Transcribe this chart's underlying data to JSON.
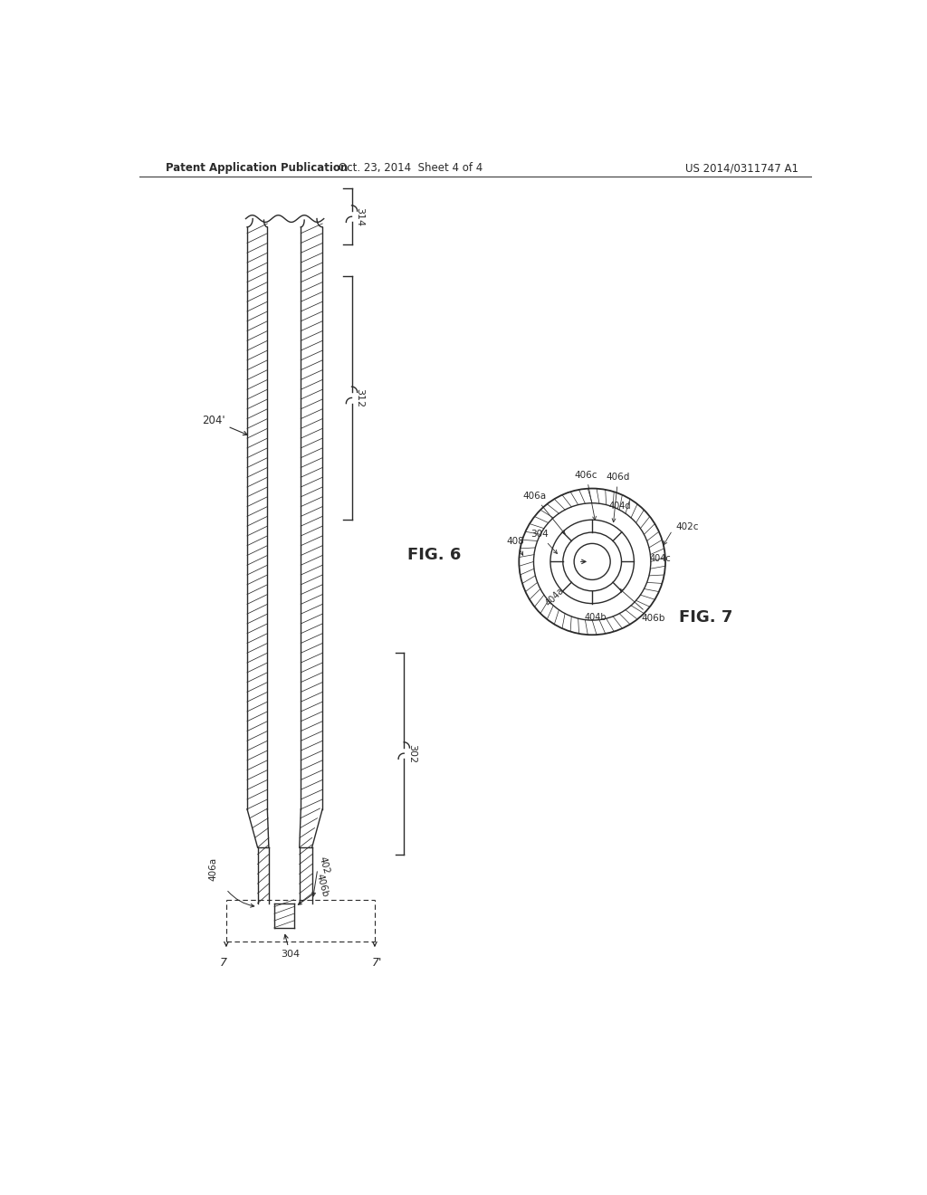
{
  "bg_color": "#ffffff",
  "line_color": "#2a2a2a",
  "header_left": "Patent Application Publication",
  "header_mid": "Oct. 23, 2014  Sheet 4 of 4",
  "header_right": "US 2014/0311747 A1",
  "fig6_label": "FIG. 6",
  "fig7_label": "FIG. 7",
  "label_204": "204'",
  "label_314": "314",
  "label_312": "312",
  "label_302": "302",
  "label_304": "304",
  "label_402": "402",
  "label_406a": "406a",
  "label_406b": "406b",
  "label_7left": "7",
  "label_7right": "7'",
  "fig7_304": "304",
  "fig7_408": "408",
  "fig7_406a": "406a",
  "fig7_406b": "406b",
  "fig7_406c": "406c",
  "fig7_406d": "406d",
  "fig7_404a": "404a",
  "fig7_404b": "404b",
  "fig7_404c": "404c",
  "fig7_404d": "404d",
  "fig7_402c": "402c"
}
